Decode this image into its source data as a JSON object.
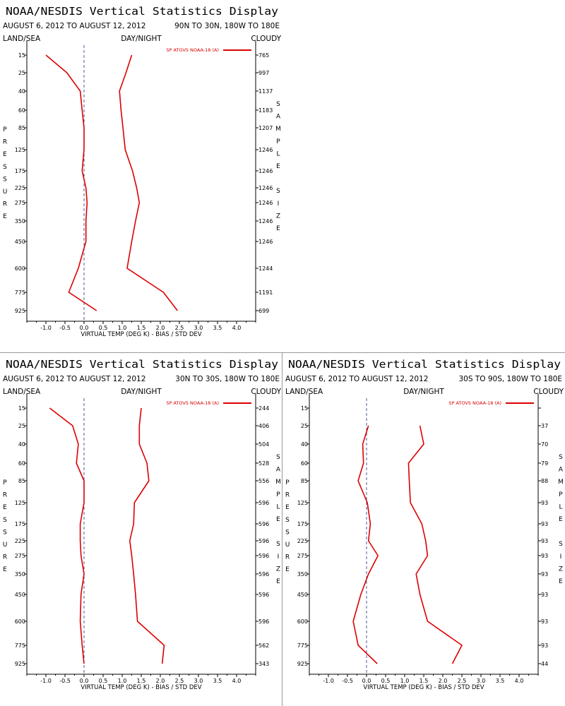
{
  "colors": {
    "series": "#dd0000",
    "axis": "#000000",
    "zero_line": "#4a5a9a"
  },
  "common": {
    "land_sea": "LAND/SEA",
    "day_night": "DAY/NIGHT",
    "cloudy": "CLOUDY",
    "left_label": [
      "P",
      "R",
      "E",
      "S",
      "S",
      "U",
      "R",
      "E"
    ],
    "right_label": [
      "S",
      "A",
      "M",
      "P",
      "L",
      "E",
      "",
      "S",
      "I",
      "Z",
      "E"
    ]
  },
  "chart_data": [
    {
      "type": "line",
      "title": "NOAA/NESDIS Vertical Statistics Display",
      "date_range": "AUGUST 6, 2012 TO AUGUST 12, 2012",
      "region": "90N TO 30N, 180W TO 180E",
      "xlabel": "VIRTUAL TEMP (DEG K) - BIAS / STD DEV",
      "legend": "SP ATOVS NOAA-18 (A)",
      "x_ticks": [
        "-1.0",
        "-0.5",
        "0.0",
        "0.5",
        "1.0",
        "1.5",
        "2.0",
        "2.5",
        "3.0",
        "3.5",
        "4.0"
      ],
      "xlim": [
        -1.5,
        4.5
      ],
      "pressure_levels": [
        "15",
        "25",
        "40",
        "60",
        "85",
        "125",
        "175",
        "225",
        "275",
        "350",
        "450",
        "600",
        "775",
        "925"
      ],
      "sample_size": [
        "765",
        "997",
        "1137",
        "1183",
        "1207",
        "1246",
        "1246",
        "1246",
        "1246",
        "1246",
        "1246",
        "1244",
        "1191",
        "699"
      ],
      "series": [
        {
          "name": "BIAS",
          "values": [
            -1.0,
            -0.45,
            -0.1,
            -0.05,
            0.0,
            0.0,
            -0.05,
            0.05,
            0.08,
            0.05,
            0.05,
            -0.15,
            -0.4,
            0.33
          ]
        },
        {
          "name": "STD DEV",
          "values": [
            1.25,
            1.1,
            0.93,
            0.97,
            1.02,
            1.08,
            1.27,
            1.38,
            1.45,
            1.35,
            1.25,
            1.13,
            2.08,
            2.45
          ]
        }
      ]
    },
    {
      "type": "line",
      "title": "NOAA/NESDIS Vertical Statistics Display",
      "date_range": "AUGUST 6, 2012 TO AUGUST 12, 2012",
      "region": "30N TO 30S, 180W TO 180E",
      "xlabel": "VIRTUAL TEMP (DEG K) - BIAS / STD DEV",
      "legend": "SP ATOVS NOAA-18 (A)",
      "x_ticks": [
        "-1.0",
        "-0.5",
        "0.0",
        "0.5",
        "1.0",
        "1.5",
        "2.0",
        "2.5",
        "3.0",
        "3.5",
        "4.0"
      ],
      "xlim": [
        -1.5,
        4.5
      ],
      "pressure_levels": [
        "15",
        "25",
        "40",
        "60",
        "85",
        "125",
        "175",
        "225",
        "275",
        "350",
        "450",
        "600",
        "775",
        "925"
      ],
      "sample_size": [
        "244",
        "406",
        "504",
        "528",
        "556",
        "596",
        "596",
        "596",
        "596",
        "596",
        "596",
        "596",
        "562",
        "343"
      ],
      "series": [
        {
          "name": "BIAS",
          "values": [
            -0.9,
            -0.3,
            -0.15,
            -0.2,
            0.0,
            0.0,
            -0.1,
            -0.1,
            -0.08,
            0.0,
            -0.08,
            -0.1,
            -0.05,
            0.0
          ]
        },
        {
          "name": "STD DEV",
          "values": [
            1.5,
            1.45,
            1.45,
            1.65,
            1.7,
            1.32,
            1.3,
            1.2,
            1.25,
            1.3,
            1.35,
            1.4,
            2.1,
            2.05
          ]
        }
      ]
    },
    {
      "type": "line",
      "title": "NOAA/NESDIS Vertical Statistics Display",
      "date_range": "AUGUST 6, 2012 TO AUGUST 12, 2012",
      "region": "30S TO 90S, 180W TO 180E",
      "xlabel": "VIRTUAL TEMP (DEG K) - BIAS / STD DEV",
      "legend": "SP ATOVS NOAA-18 (A)",
      "x_ticks": [
        "-1.0",
        "-0.5",
        "0.0",
        "0.5",
        "1.0",
        "1.5",
        "2.0",
        "2.5",
        "3.0",
        "3.5",
        "4.0"
      ],
      "xlim": [
        -1.5,
        4.5
      ],
      "pressure_levels": [
        "15",
        "25",
        "40",
        "60",
        "85",
        "125",
        "175",
        "225",
        "275",
        "350",
        "450",
        "600",
        "775",
        "925"
      ],
      "sample_size": [
        "",
        "37",
        "70",
        "79",
        "88",
        "93",
        "93",
        "93",
        "93",
        "93",
        "93",
        "93",
        "93",
        "44"
      ],
      "series": [
        {
          "name": "BIAS",
          "values": [
            null,
            0.05,
            -0.1,
            -0.08,
            -0.22,
            0.02,
            0.1,
            0.05,
            0.3,
            0.05,
            -0.15,
            -0.35,
            -0.22,
            0.28
          ]
        },
        {
          "name": "STD DEV",
          "values": [
            null,
            1.4,
            1.5,
            1.1,
            1.12,
            1.15,
            1.45,
            1.55,
            1.6,
            1.3,
            1.4,
            1.6,
            2.5,
            2.25
          ]
        }
      ]
    }
  ]
}
